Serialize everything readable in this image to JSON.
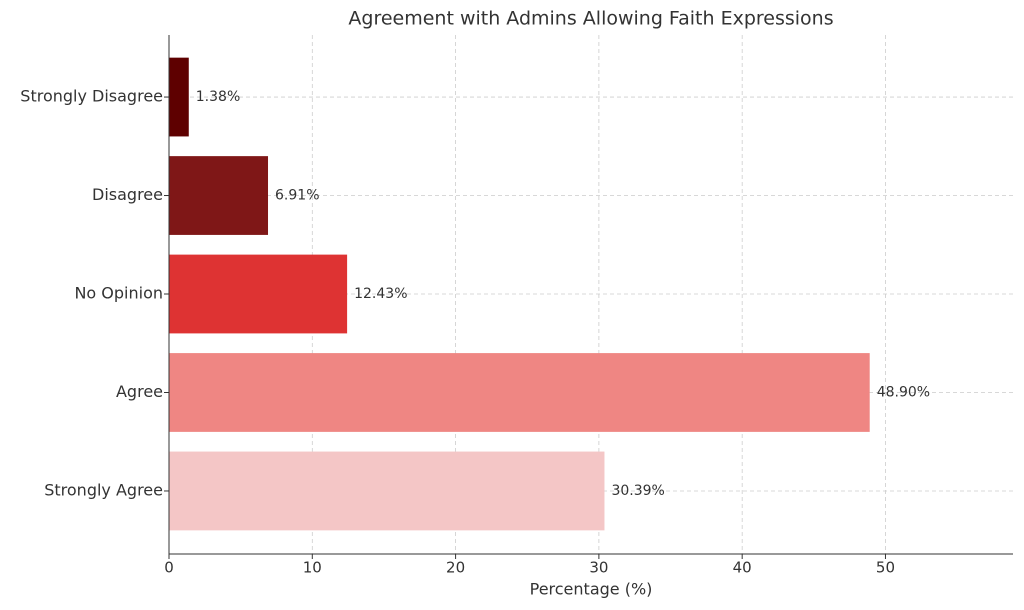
{
  "chart_data": {
    "type": "barh",
    "title": "Agreement with Admins Allowing Faith Expressions",
    "xlabel": "Percentage (%)",
    "categories": [
      "Strongly Agree",
      "Agree",
      "No Opinion",
      "Disagree",
      "Strongly Disagree"
    ],
    "values": [
      30.39,
      48.9,
      12.43,
      6.91,
      1.38
    ],
    "value_labels": [
      "30.39%",
      "48.90%",
      "12.43%",
      "6.91%",
      "1.38%"
    ],
    "colors": [
      "#f4c6c6",
      "#ef8683",
      "#de3333",
      "#7f1717",
      "#5e0000"
    ],
    "xlim": [
      0,
      58.9
    ],
    "xticks": [
      0,
      10,
      20,
      30,
      40,
      50
    ],
    "grid": true
  }
}
